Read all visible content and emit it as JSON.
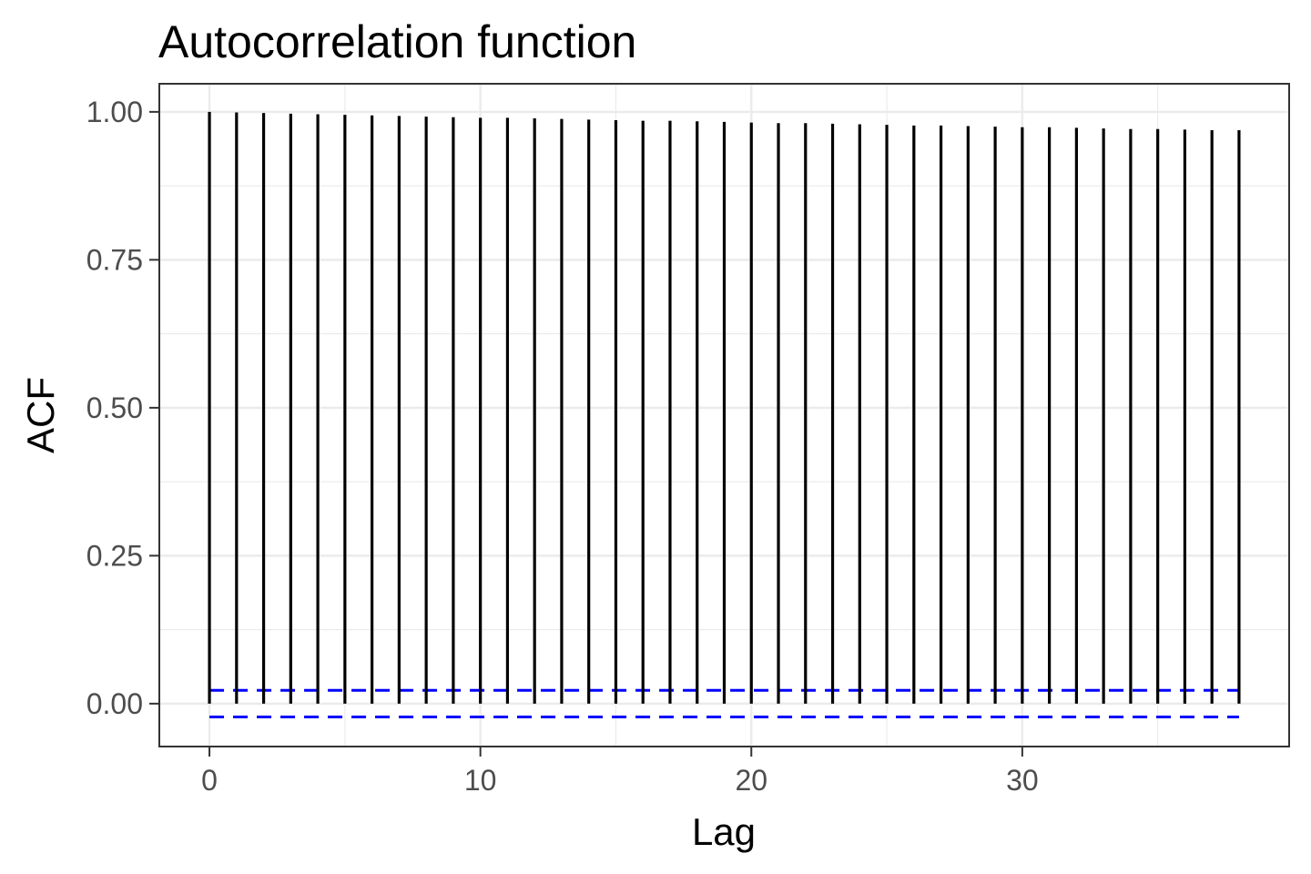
{
  "chart_data": {
    "type": "bar",
    "title": "Autocorrelation function",
    "xlabel": "Lag",
    "ylabel": "ACF",
    "x": [
      0,
      1,
      2,
      3,
      4,
      5,
      6,
      7,
      8,
      9,
      10,
      11,
      12,
      13,
      14,
      15,
      16,
      17,
      18,
      19,
      20,
      21,
      22,
      23,
      24,
      25,
      26,
      27,
      28,
      29,
      30,
      31,
      32,
      33,
      34,
      35,
      36,
      37,
      38
    ],
    "values": [
      1.0,
      0.999,
      0.998,
      0.997,
      0.996,
      0.995,
      0.994,
      0.993,
      0.992,
      0.991,
      0.99,
      0.99,
      0.989,
      0.988,
      0.987,
      0.986,
      0.985,
      0.985,
      0.984,
      0.983,
      0.982,
      0.981,
      0.981,
      0.98,
      0.979,
      0.978,
      0.977,
      0.977,
      0.976,
      0.975,
      0.974,
      0.974,
      0.973,
      0.972,
      0.971,
      0.971,
      0.97,
      0.969,
      0.969
    ],
    "confidence_bounds": [
      0.0225,
      -0.0225
    ],
    "xlim": [
      -1.85,
      39.85
    ],
    "ylim": [
      -0.0725,
      1.0475
    ],
    "x_ticks": [
      0,
      10,
      20,
      30
    ],
    "x_tick_labels": [
      "0",
      "10",
      "20",
      "30"
    ],
    "y_ticks": [
      0.0,
      0.25,
      0.5,
      0.75,
      1.0
    ],
    "y_tick_labels": [
      "0.00",
      "0.25",
      "0.50",
      "0.75",
      "1.00"
    ],
    "grid": true,
    "legend": false,
    "colors": {
      "bars": "#000000",
      "confidence": "#0000ff",
      "grid": "#ebebeb",
      "panel_border": "#333333",
      "tick_text": "#4d4d4d",
      "background": "#ffffff"
    }
  }
}
